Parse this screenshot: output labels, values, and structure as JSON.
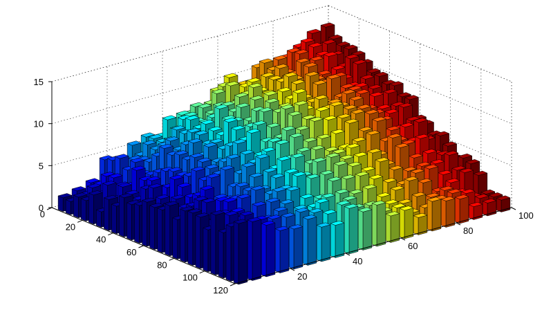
{
  "chart_data": {
    "type": "bar3",
    "title": "",
    "xlabel": "",
    "ylabel": "",
    "zlabel": "",
    "x_range": [
      0,
      120
    ],
    "y_range": [
      0,
      100
    ],
    "z_range": [
      0,
      15
    ],
    "x_ticks": [
      0,
      20,
      40,
      60,
      80,
      100,
      120
    ],
    "y_ticks": [
      20,
      40,
      60,
      80,
      100
    ],
    "z_ticks": [
      0,
      5,
      10,
      15
    ],
    "grid": true,
    "colormap": "jet",
    "bar_grid": {
      "rows": 24,
      "cols": 20,
      "row_step": 5,
      "col_step": 5
    },
    "surface_description_values": {
      "z_at_corner_x0_y0": 1,
      "z_at_corner_x0_y100": 14,
      "z_at_corner_x120_y0": 7,
      "z_at_corner_x120_y100": 1,
      "z_peak": 14
    }
  }
}
